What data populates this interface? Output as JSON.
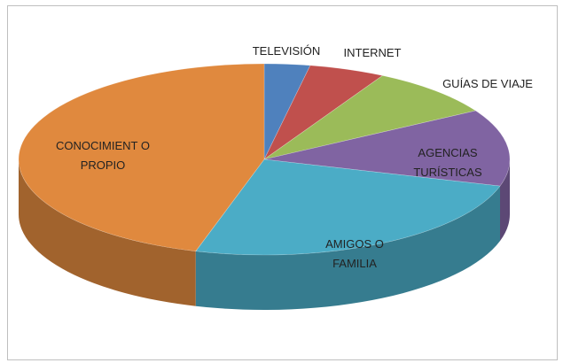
{
  "chart_data": {
    "type": "pie3d",
    "categories": [
      "TELEVISIÓN",
      "INTERNET",
      "GUÍAS DE VIAJE",
      "AGENCIAS TURÍSTICAS",
      "AMIGOS O FAMILIA",
      "CONOCIMIENT O PROPIO"
    ],
    "values": [
      3,
      5,
      8.5,
      13,
      25,
      45.5
    ],
    "colors": [
      "#4f81bd",
      "#c0504d",
      "#9bbb59",
      "#8064a2",
      "#4bacc6",
      "#e0893e"
    ]
  }
}
